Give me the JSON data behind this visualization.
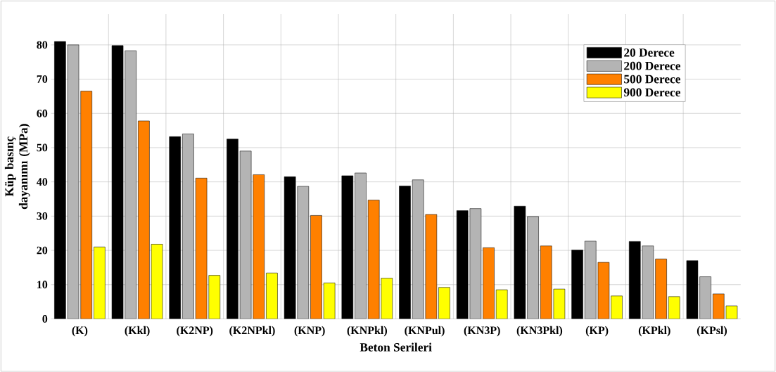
{
  "chart_data": {
    "type": "bar",
    "xlabel": "Beton Serileri",
    "ylabel": "Küp basınç dayanımı (MPa)",
    "categories": [
      "(K)",
      "(Kkl)",
      "(K2NP)",
      "(K2NPkl)",
      "(KNP)",
      "(KNPkl)",
      "(KNPul)",
      "(KN3P)",
      "(KN3Pkl)",
      "(KP)",
      "(KPkl)",
      "(KPsl)"
    ],
    "series": [
      {
        "name": "20   Derece",
        "color": "#000000",
        "values": [
          81,
          79.8,
          53.2,
          52.5,
          41.5,
          41.8,
          38.8,
          31.6,
          32.9,
          20.1,
          22.6,
          17
        ]
      },
      {
        "name": "200 Derece",
        "color": "#b4b4b4",
        "values": [
          80,
          78.3,
          54,
          49,
          38.7,
          42.6,
          40.6,
          32.2,
          29.9,
          22.7,
          21.3,
          12.3
        ]
      },
      {
        "name": "500 Derece",
        "color": "#ff8000",
        "values": [
          66.5,
          57.8,
          41.1,
          42.1,
          30.2,
          34.7,
          30.5,
          20.8,
          21.3,
          16.5,
          17.5,
          7.3
        ]
      },
      {
        "name": "900 Derece",
        "color": "#ffff00",
        "values": [
          21,
          21.8,
          12.7,
          13.4,
          10.5,
          11.9,
          9.2,
          8.5,
          8.7,
          6.7,
          6.5,
          3.8
        ]
      }
    ],
    "ylim": [
      0,
      89
    ],
    "yticks": [
      0,
      10,
      20,
      30,
      40,
      50,
      60,
      70,
      80
    ],
    "grid": true,
    "legend": "top right"
  }
}
